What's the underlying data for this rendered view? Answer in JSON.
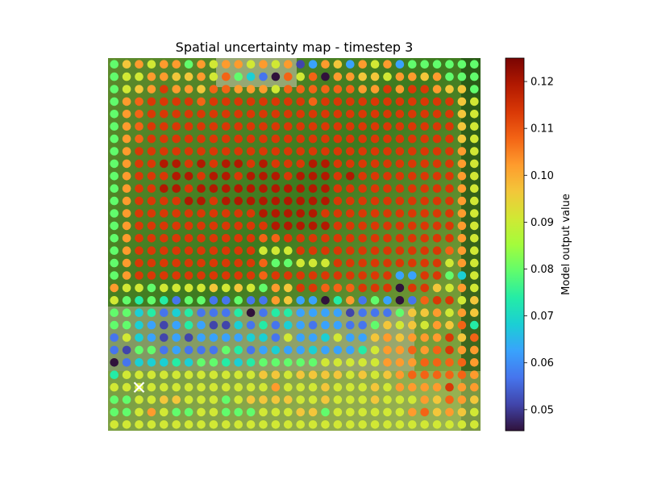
{
  "chart_data": {
    "type": "scatter",
    "title": "Spatial uncertainty map - timestep 3",
    "grid": false,
    "background": "aerial-imagery",
    "colormap": "turbo",
    "colorbar": {
      "label": "Model output value",
      "range": [
        0.0455,
        0.125
      ],
      "ticks": [
        "0.05",
        "0.06",
        "0.07",
        "0.08",
        "0.09",
        "0.10",
        "0.11",
        "0.12"
      ]
    },
    "grid_columns": 30,
    "grid_rows": 30,
    "marker": {
      "type": "x",
      "column": 2,
      "row": 26,
      "color": "#ffffff"
    },
    "values": [
      "79A8AA7A8AA8A8A24A94A8A4777777",
      "788AA99A8B7531B8B1AA998AA9A777",
      "789ACAA9BBAAA8BBBBBBAACACCA997",
      "7ABCCCCBCCCCCCCCBCCCCCCCCCCC98",
      "7ABCCCCCCCCCCCCCCCCCCCCCCCCC98",
      "7ABCCCCCCCCCCCCCCCCCCCCCCCCC98",
      "7ABCCCCCCCCCCCCCCCCCCCCCCCCC98",
      "7ACCCCCCCCCCCCCCCCCCCCCCCCCCA8",
      "7ACCDDCDCDDCDCCCDDCCCCCCCCCCA8",
      "7ACCCDDCDDCDDDCDDDCDCCCCCCCCA8",
      "7ACCDDCDDDDDDDDDDDCCCCCCCCCCA8",
      "7ACCCCDDCDDDDDDDDDCCCCCCCCCCA8",
      "7ACCCCCCCCCCDDDDDCCCCCCCCCCCA8",
      "7ACCCCCCCCCCCDDDDDCCCCCCCCCCA8",
      "7ACCCCCCCCCCBBCCCCCCCCCCCCCCA8",
      "7ACCCCCCCCCC888CCCCCCCCCCCCBA8",
      "7ACCCCCCCCCCB77888CCCCCCCCC8A8",
      "7ACCCCCCCCCCBCCCCCCCCCC44CC758",
      "A887888898987A9CCBBBCCC1CC98A8",
      "8767637733733A94416A37413BCC89",
      "77563563336136644442333799A8A9",
      "77542464225363543443379898A9B6",
      "3854242444455384458449A9AAAC9B",
      "3277343337634544544468AABABCAA",
      "1355565776567777788888AAABBBBA",
      "68888888888899899998989ABBBBBA",
      "8888888888888A888988898AAAACAA",
      "7788998887899998898889888A9BA9",
      "778A87788777888997888888AB9A98",
      "888888888888888888888888888888"
    ]
  }
}
